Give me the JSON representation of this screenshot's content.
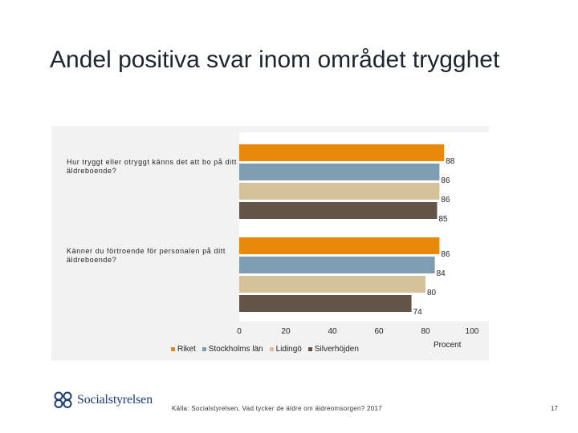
{
  "slide": {
    "title": "Andel positiva svar inom området trygghet",
    "source": "Källa: Socialstyrelsen, Vad tycker de äldre om äldreomsorgen? 2017",
    "page_number": "17",
    "logo_text": "Socialstyrelsen"
  },
  "colors": {
    "Riket": "#e8890c",
    "Stockholms län": "#7f9db2",
    "Lidingö": "#d6c29a",
    "Silverhöjden": "#655548",
    "panel": "#f2f2f2",
    "brand": "#1c3c74"
  },
  "chart_data": {
    "type": "bar",
    "orientation": "horizontal",
    "categories": [
      "Hur tryggt eller otryggt känns det att bo på ditt äldreboende?",
      "Känner du förtroende för personalen på ditt äldreboende?"
    ],
    "series": [
      {
        "name": "Riket",
        "values": [
          88,
          86
        ]
      },
      {
        "name": "Stockholms län",
        "values": [
          86,
          84
        ]
      },
      {
        "name": "Lidingö",
        "values": [
          86,
          80
        ]
      },
      {
        "name": "Silverhöjden",
        "values": [
          85,
          74
        ]
      }
    ],
    "xlim": [
      0,
      100
    ],
    "xticks": [
      "0",
      "20",
      "40",
      "60",
      "80",
      "100"
    ],
    "xlabel": "Procent",
    "title": "Andel positiva svar inom området trygghet",
    "legend_position": "bottom"
  }
}
